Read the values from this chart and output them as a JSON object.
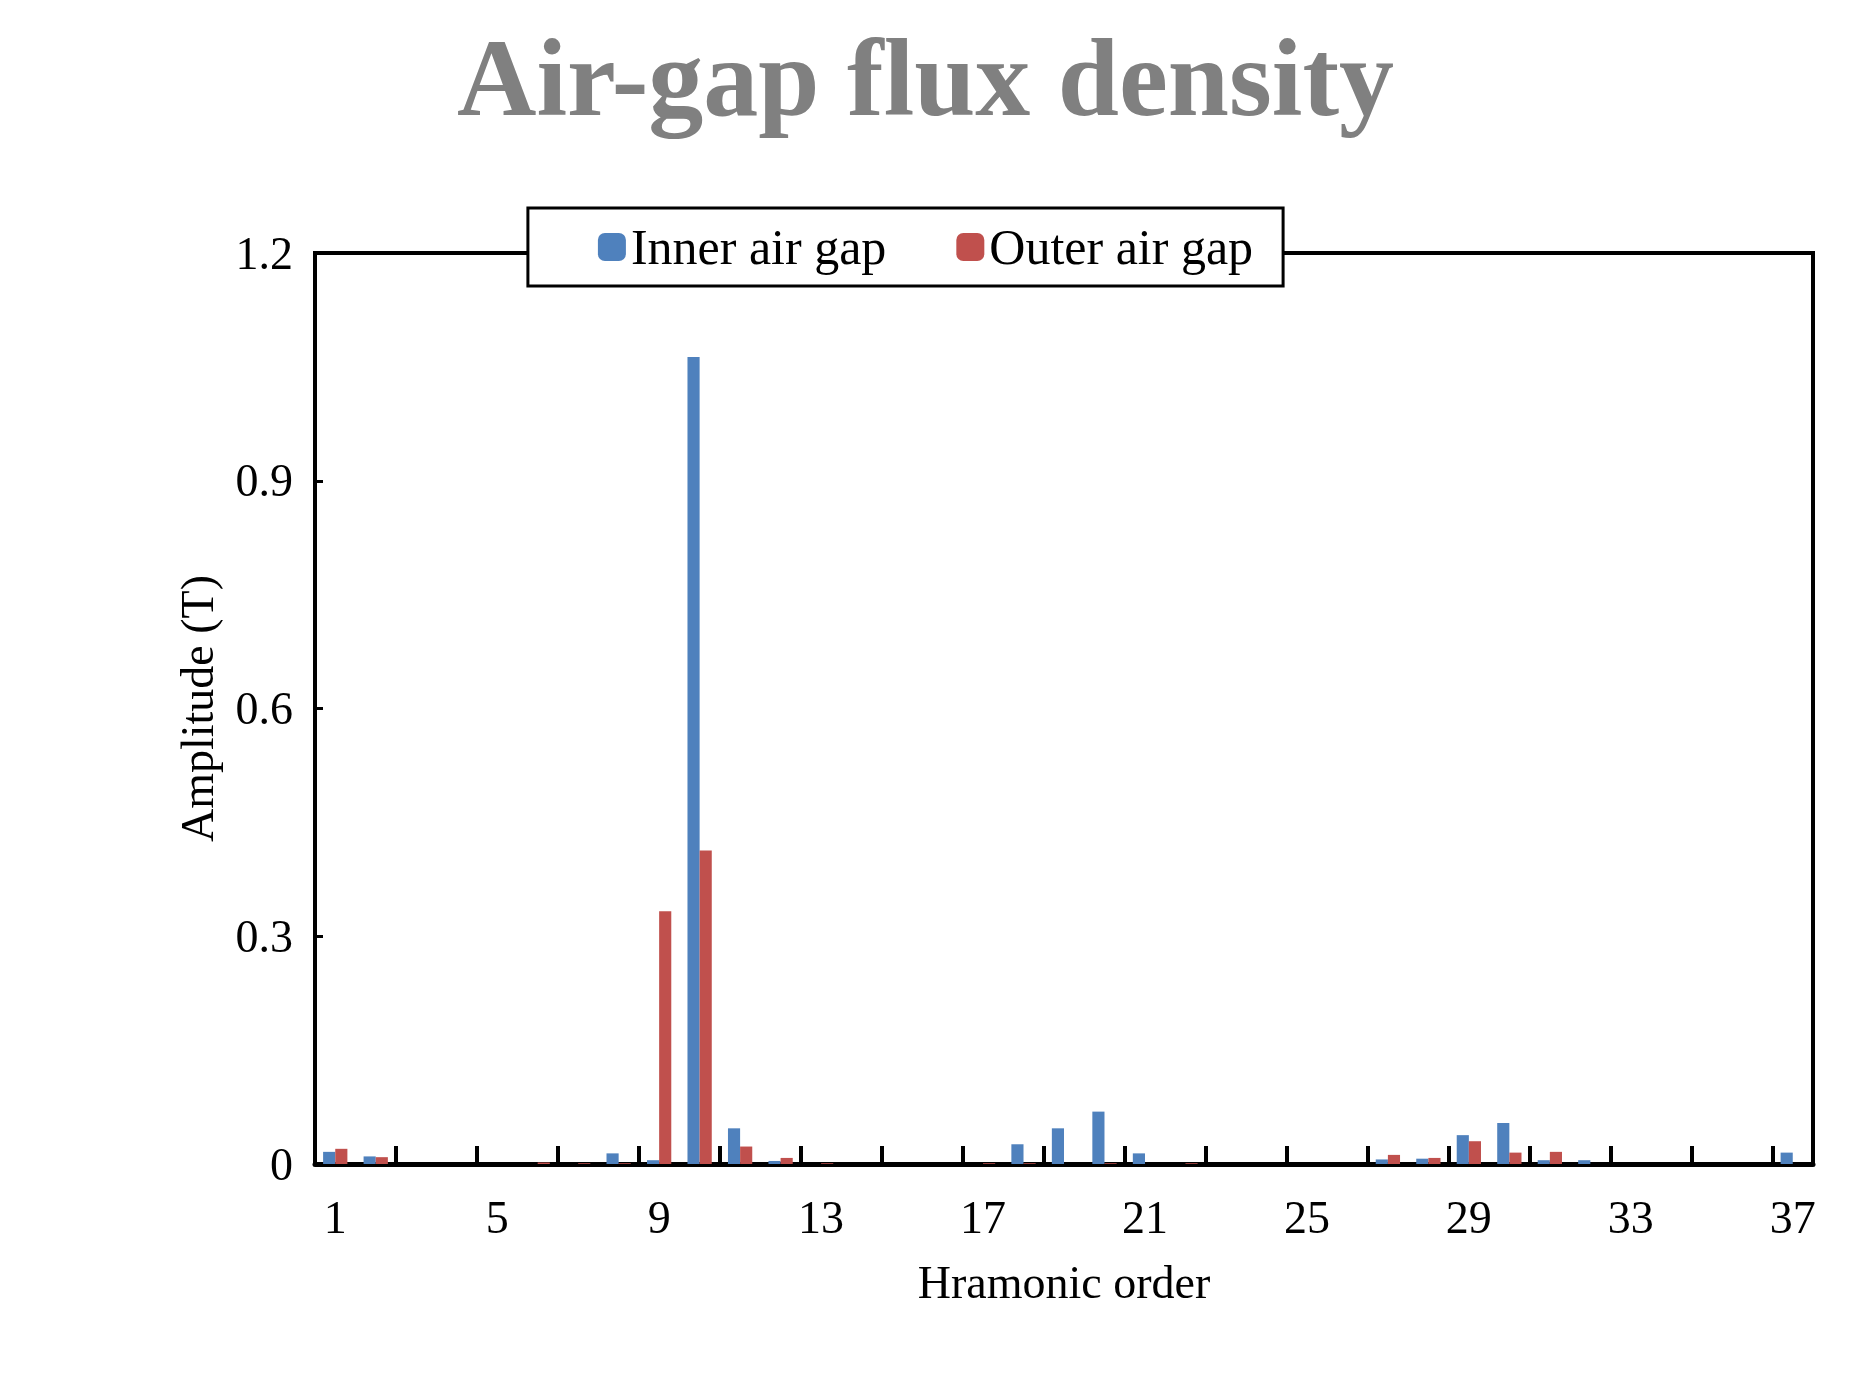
{
  "chart_data": {
    "type": "bar",
    "title": "Air-gap flux density",
    "xlabel": "Hramonic order",
    "ylabel": "Amplitude (T)",
    "categories": [
      "1",
      null,
      null,
      null,
      "5",
      null,
      null,
      null,
      "9",
      null,
      null,
      null,
      "13",
      null,
      null,
      null,
      "17",
      null,
      null,
      null,
      "21",
      null,
      null,
      null,
      "25",
      null,
      null,
      null,
      "29",
      null,
      null,
      null,
      "33",
      null,
      null,
      null,
      "37"
    ],
    "series": [
      {
        "name": "Inner air gap",
        "color": "#4f81bd",
        "values": [
          0.016,
          0.01,
          0,
          0,
          0,
          0,
          0,
          0.014,
          0.005,
          1.063,
          0.047,
          0.004,
          0,
          0,
          0,
          0,
          0,
          0.026,
          0.047,
          0.069,
          0.014,
          0,
          0,
          0,
          0,
          0,
          0.006,
          0.007,
          0.038,
          0.054,
          0.005,
          0.005,
          0,
          0,
          0,
          0,
          0.015
        ]
      },
      {
        "name": "Outer air gap",
        "color": "#c0504d",
        "values": [
          0.02,
          0.009,
          0,
          0,
          0,
          0.002,
          0.001,
          0.001,
          0.333,
          0.413,
          0.023,
          0.008,
          0.001,
          0,
          0,
          0,
          0.001,
          0.001,
          0,
          0.001,
          0,
          0.001,
          0,
          0,
          0,
          0,
          0.012,
          0.008,
          0.03,
          0.015,
          0.016,
          0,
          0,
          0,
          0,
          0,
          0
        ]
      }
    ],
    "ylim": [
      0,
      1.2
    ],
    "yticks": [
      0,
      0.3,
      0.6,
      0.9,
      1.2
    ],
    "grid": false,
    "legend": "top"
  }
}
